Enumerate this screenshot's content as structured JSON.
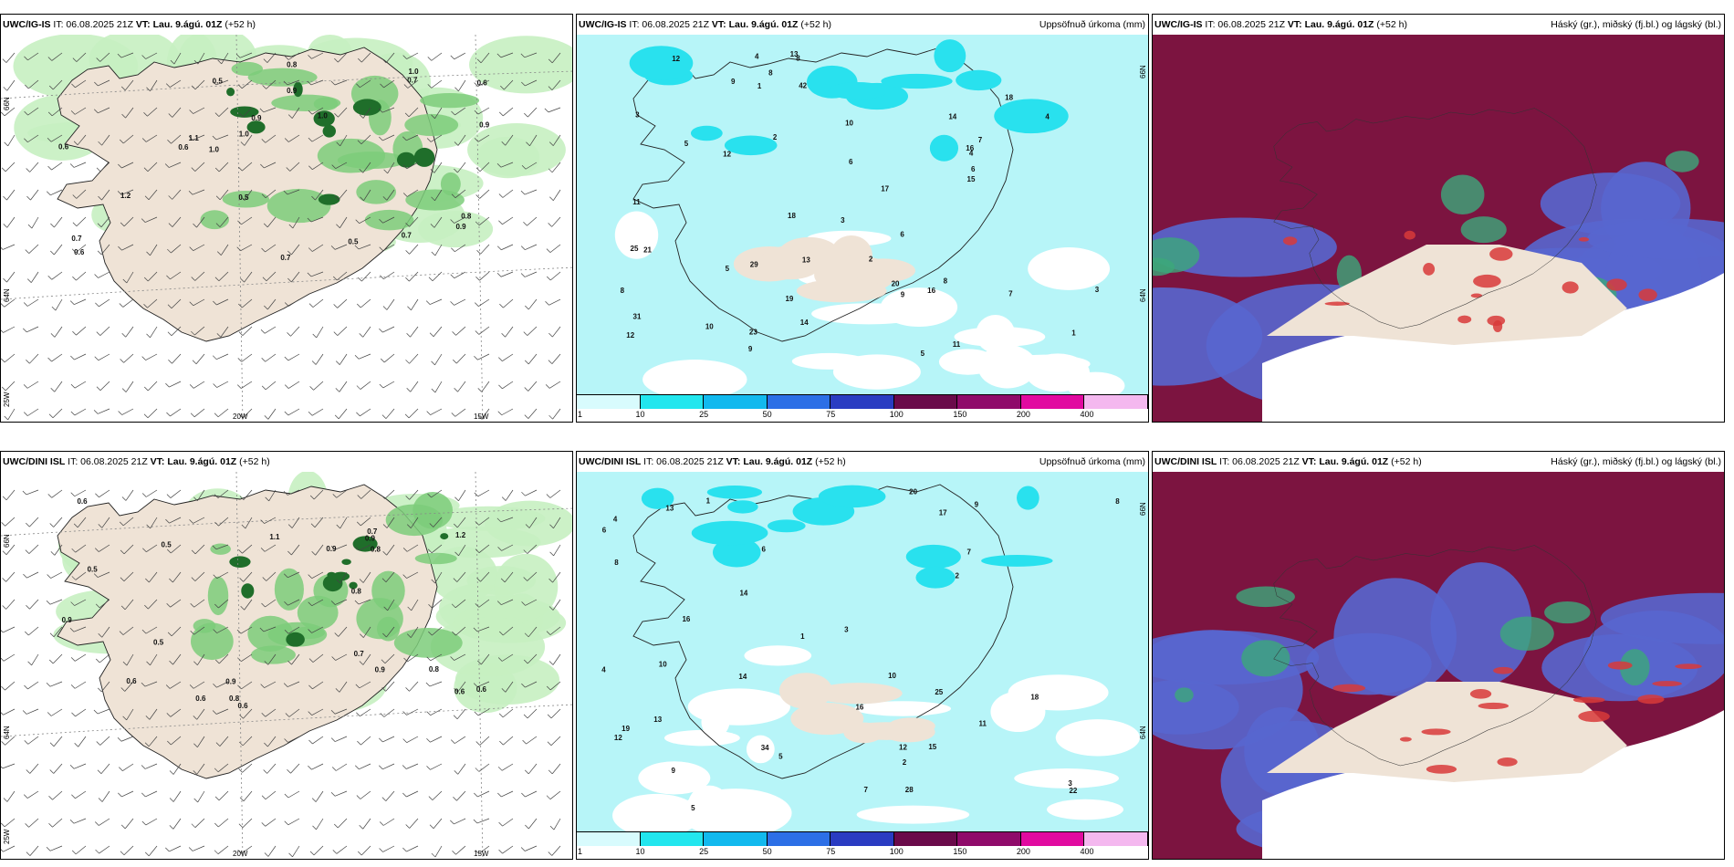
{
  "panels": [
    {
      "source": "UWC/IG-IS",
      "it": "IT: 06.08.2025 21Z",
      "vt": "VT: Lau. 9.ágú. 01Z",
      "lead": "(+52 h)",
      "right_title": "",
      "type": "wind"
    },
    {
      "source": "UWC/IG-IS",
      "it": "IT: 06.08.2025 21Z",
      "vt": "VT: Lau. 9.ágú. 01Z",
      "lead": "(+52 h)",
      "right_title": "Uppsöfnuð úrkoma (mm)",
      "type": "precip"
    },
    {
      "source": "UWC/IG-IS",
      "it": "IT: 06.08.2025 21Z",
      "vt": "VT: Lau. 9.ágú. 01Z",
      "lead": "(+52 h)",
      "right_title": "Háský (gr.), miðský (fj.bl.) og lágský (bl.)",
      "type": "cloud"
    },
    {
      "source": "UWC/DINI ISL",
      "it": "IT: 06.08.2025 21Z",
      "vt": "VT: Lau. 9.ágú. 01Z",
      "lead": "(+52 h)",
      "right_title": "",
      "type": "wind"
    },
    {
      "source": "UWC/DINI ISL",
      "it": "IT: 06.08.2025 21Z",
      "vt": "VT: Lau. 9.ágú. 01Z",
      "lead": "(+52 h)",
      "right_title": "Uppsöfnuð úrkoma (mm)",
      "type": "precip"
    },
    {
      "source": "UWC/DINI ISL",
      "it": "IT: 06.08.2025 21Z",
      "vt": "VT: Lau. 9.ágú. 01Z",
      "lead": "(+52 h)",
      "right_title": "Háský (gr.), miðský (fj.bl.) og lágský (bl.)",
      "type": "cloud"
    }
  ],
  "axis_labels": {
    "lat_66": "66N",
    "lat_64": "64N",
    "lon_25": "25W",
    "lon_20": "20W",
    "lon_15": "15W"
  },
  "colorbar": {
    "ticks": [
      "1",
      "10",
      "25",
      "50",
      "75",
      "100",
      "150",
      "200",
      "400"
    ],
    "colors": [
      "#d8fbfd",
      "#22e6ee",
      "#12b9ee",
      "#2c6fe6",
      "#2a3cc2",
      "#6a0a4a",
      "#8f0a6a",
      "#e10aa0",
      "#f4b8ef"
    ]
  },
  "colors": {
    "land": "#efe3d6",
    "green_light": "#c7f0c1",
    "green_mid": "#7ccd7a",
    "green_dark": "#1f6e2a",
    "precip_bg": "#b7f5f8",
    "cyan": "#29e1ee",
    "maroon": "#7c1440",
    "blue_cloud": "#5866cf",
    "coast": "#222222"
  },
  "wind_values_top": [
    "0.7",
    "0.6",
    "0.9",
    "0.5",
    "1.0",
    "0.5",
    "1.0",
    "0.6",
    "1.1",
    "0.8",
    "0.9",
    "1.2",
    "0.7",
    "0.5",
    "0.8",
    "1.0",
    "0.6",
    "0.7",
    "0.9",
    "1.0",
    "0.6",
    "0.9",
    "0.7"
  ],
  "wind_values_bottom": [
    "0.5",
    "0.6",
    "0.8",
    "0.6",
    "0.9",
    "1.1",
    "0.8",
    "0.9",
    "0.7",
    "0.9",
    "0.8",
    "0.6",
    "0.5",
    "0.6",
    "0.7",
    "0.9",
    "0.6",
    "0.5",
    "1.2",
    "0.8",
    "0.6",
    "0.9"
  ],
  "precip_values_top": [
    "12",
    "6",
    "17",
    "29",
    "23",
    "25",
    "14",
    "18",
    "10",
    "16",
    "19",
    "21",
    "7",
    "8",
    "9",
    "11",
    "5",
    "4",
    "3",
    "12",
    "20",
    "31",
    "42",
    "18",
    "13",
    "6",
    "8",
    "13",
    "11",
    "3",
    "2",
    "1",
    "14",
    "16",
    "4",
    "6",
    "9",
    "10",
    "5",
    "2",
    "12",
    "8",
    "7",
    "4",
    "9",
    "15",
    "8",
    "3",
    "5",
    "1"
  ],
  "precip_values_bottom": [
    "16",
    "8",
    "10",
    "13",
    "15",
    "14",
    "16",
    "18",
    "34",
    "25",
    "22",
    "4",
    "3",
    "5",
    "7",
    "2",
    "6",
    "9",
    "12",
    "11",
    "1",
    "20",
    "17",
    "19",
    "28",
    "10",
    "8",
    "5",
    "3",
    "2",
    "1",
    "4",
    "6",
    "7",
    "9",
    "14",
    "12",
    "13"
  ]
}
